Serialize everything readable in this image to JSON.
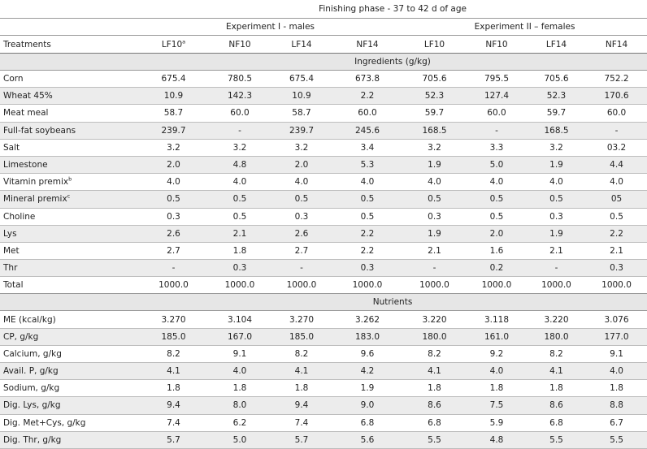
{
  "header": {
    "phase": "Finishing phase - 37 to 42 d of age",
    "experiment_1": "Experiment I - males",
    "experiment_2": "Experiment II – females",
    "treatments_label": "Treatments",
    "columns": [
      {
        "label": "LF10",
        "sup": "a"
      },
      {
        "label": "NF10",
        "sup": ""
      },
      {
        "label": "LF14",
        "sup": ""
      },
      {
        "label": "NF14",
        "sup": ""
      },
      {
        "label": "LF10",
        "sup": ""
      },
      {
        "label": "NF10",
        "sup": ""
      },
      {
        "label": "LF14",
        "sup": ""
      },
      {
        "label": "NF14",
        "sup": ""
      }
    ]
  },
  "sections": [
    {
      "title": "Ingredients (g/kg)",
      "rows": [
        {
          "label": "Corn",
          "sup": "",
          "values": [
            "675.4",
            "780.5",
            "675.4",
            "673.8",
            "705.6",
            "795.5",
            "705.6",
            "752.2"
          ]
        },
        {
          "label": "Wheat 45%",
          "sup": "",
          "values": [
            "10.9",
            "142.3",
            "10.9",
            "2.2",
            "52.3",
            "127.4",
            "52.3",
            "170.6"
          ]
        },
        {
          "label": "Meat meal",
          "sup": "",
          "values": [
            "58.7",
            "60.0",
            "58.7",
            "60.0",
            "59.7",
            "60.0",
            "59.7",
            "60.0"
          ]
        },
        {
          "label": "Full-fat soybeans",
          "sup": "",
          "values": [
            "239.7",
            "-",
            "239.7",
            "245.6",
            "168.5",
            "-",
            "168.5",
            "-"
          ]
        },
        {
          "label": "Salt",
          "sup": "",
          "values": [
            "3.2",
            "3.2",
            "3.2",
            "3.4",
            "3.2",
            "3.3",
            "3.2",
            "03.2"
          ]
        },
        {
          "label": "Limestone",
          "sup": "",
          "values": [
            "2.0",
            "4.8",
            "2.0",
            "5.3",
            "1.9",
            "5.0",
            "1.9",
            "4.4"
          ]
        },
        {
          "label": "Vitamin premix",
          "sup": "b",
          "values": [
            "4.0",
            "4.0",
            "4.0",
            "4.0",
            "4.0",
            "4.0",
            "4.0",
            "4.0"
          ]
        },
        {
          "label": "Mineral premix",
          "sup": "c",
          "values": [
            "0.5",
            "0.5",
            "0.5",
            "0.5",
            "0.5",
            "0.5",
            "0.5",
            "05"
          ]
        },
        {
          "label": "Choline",
          "sup": "",
          "values": [
            "0.3",
            "0.5",
            "0.3",
            "0.5",
            "0.3",
            "0.5",
            "0.3",
            "0.5"
          ]
        },
        {
          "label": "Lys",
          "sup": "",
          "values": [
            "2.6",
            "2.1",
            "2.6",
            "2.2",
            "1.9",
            "2.0",
            "1.9",
            "2.2"
          ]
        },
        {
          "label": "Met",
          "sup": "",
          "values": [
            "2.7",
            "1.8",
            "2.7",
            "2.2",
            "2.1",
            "1.6",
            "2.1",
            "2.1"
          ]
        },
        {
          "label": "Thr",
          "sup": "",
          "values": [
            "-",
            "0.3",
            "-",
            "0.3",
            "-",
            "0.2",
            "-",
            "0.3"
          ]
        },
        {
          "label": "Total",
          "sup": "",
          "values": [
            "1000.0",
            "1000.0",
            "1000.0",
            "1000.0",
            "1000.0",
            "1000.0",
            "1000.0",
            "1000.0"
          ]
        }
      ]
    },
    {
      "title": "Nutrients",
      "rows": [
        {
          "label": "ME (kcal/kg)",
          "sup": "",
          "values": [
            "3.270",
            "3.104",
            "3.270",
            "3.262",
            "3.220",
            "3.118",
            "3.220",
            "3.076"
          ]
        },
        {
          "label": "CP, g/kg",
          "sup": "",
          "values": [
            "185.0",
            "167.0",
            "185.0",
            "183.0",
            "180.0",
            "161.0",
            "180.0",
            "177.0"
          ]
        },
        {
          "label": "Calcium, g/kg",
          "sup": "",
          "values": [
            "8.2",
            "9.1",
            "8.2",
            "9.6",
            "8.2",
            "9.2",
            "8.2",
            "9.1"
          ]
        },
        {
          "label": "Avail. P, g/kg",
          "sup": "",
          "values": [
            "4.1",
            "4.0",
            "4.1",
            "4.2",
            "4.1",
            "4.0",
            "4.1",
            "4.0"
          ]
        },
        {
          "label": "Sodium, g/kg",
          "sup": "",
          "values": [
            "1.8",
            "1.8",
            "1.8",
            "1.9",
            "1.8",
            "1.8",
            "1.8",
            "1.8"
          ]
        },
        {
          "label": "Dig. Lys, g/kg",
          "sup": "",
          "values": [
            "9.4",
            "8.0",
            "9.4",
            "9.0",
            "8.6",
            "7.5",
            "8.6",
            "8.8"
          ]
        },
        {
          "label": "Dig. Met+Cys, g/kg",
          "sup": "",
          "values": [
            "7.4",
            "6.2",
            "7.4",
            "6.8",
            "6.8",
            "5.9",
            "6.8",
            "6.7"
          ]
        },
        {
          "label": "Dig. Thr, g/kg",
          "sup": "",
          "values": [
            "5.7",
            "5.0",
            "5.7",
            "5.6",
            "5.5",
            "4.8",
            "5.5",
            "5.5"
          ]
        }
      ]
    }
  ]
}
